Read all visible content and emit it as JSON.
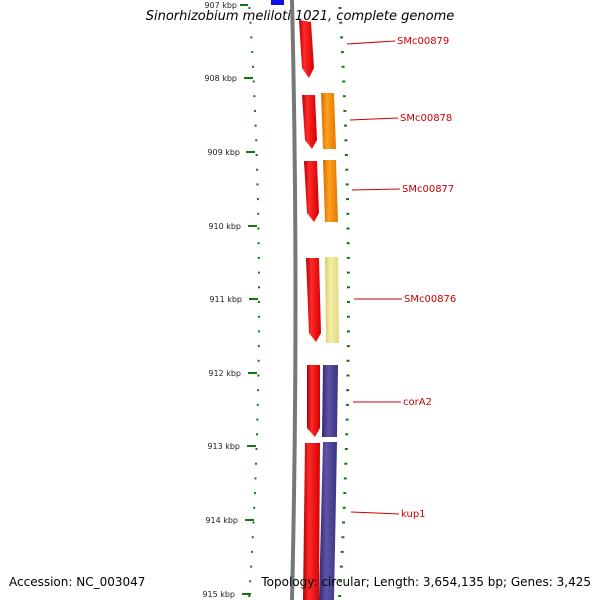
{
  "title": "Sinorhizobium meliloti 1021, complete genome",
  "footer": {
    "accession": "Accession: NC_003047",
    "topology": "Topology: circular",
    "length": "Length: 3,654,135 bp",
    "genes": "Genes: 3,425"
  },
  "ruler": {
    "ticks": [
      "907 kbp",
      "908 kbp",
      "909 kbp",
      "910 kbp",
      "911 kbp",
      "912 kbp",
      "913 kbp",
      "914 kbp",
      "915 kbp"
    ]
  },
  "colors": {
    "cds": "#ee1111",
    "orange": "#ff8c00",
    "khaki": "#f0e68c",
    "purple": "#4a3f8c",
    "blue": "#1010ee",
    "tick_green": "#117711",
    "label_red": "#cc0000",
    "backbone": "#777777"
  },
  "genes": [
    {
      "label": "SMc00879",
      "cog_color": ""
    },
    {
      "label": "SMc00878",
      "cog_color": "orange"
    },
    {
      "label": "SMc00877",
      "cog_color": "orange"
    },
    {
      "label": "SMc00876",
      "cog_color": "khaki"
    },
    {
      "label": "corA2",
      "cog_color": "purple"
    },
    {
      "label": "kup1",
      "cog_color": "purple"
    }
  ]
}
